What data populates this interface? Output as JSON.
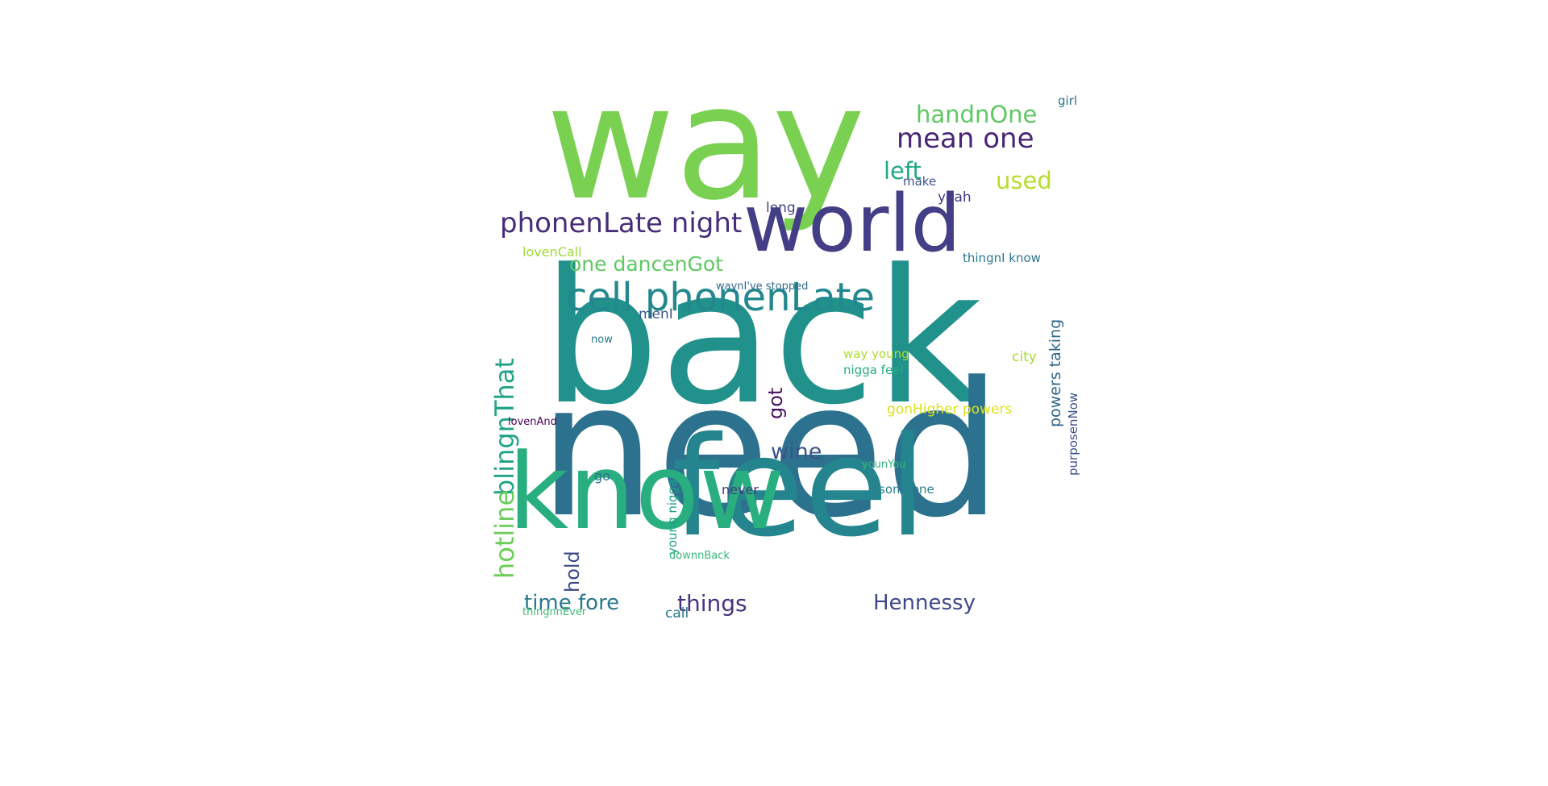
{
  "wordcloud": {
    "background": "#ffffff",
    "palette": "viridis",
    "words": [
      {
        "text": "back",
        "color": "#21918c",
        "orientation": "horizontal"
      },
      {
        "text": "need",
        "color": "#2c728e",
        "orientation": "horizontal"
      },
      {
        "text": "way",
        "color": "#7ad151",
        "orientation": "horizontal"
      },
      {
        "text": "feel",
        "color": "#25858e",
        "orientation": "horizontal"
      },
      {
        "text": "know",
        "color": "#29af7f",
        "orientation": "horizontal"
      },
      {
        "text": "world",
        "color": "#433e85",
        "orientation": "horizontal"
      },
      {
        "text": "cell phonenLate",
        "color": "#23888e",
        "orientation": "horizontal"
      },
      {
        "text": "phonenLate night",
        "color": "#472c7a",
        "orientation": "horizontal"
      },
      {
        "text": "mean one",
        "color": "#482576",
        "orientation": "horizontal"
      },
      {
        "text": "handnOne",
        "color": "#5ec962",
        "orientation": "horizontal"
      },
      {
        "text": "left",
        "color": "#22a884",
        "orientation": "horizontal"
      },
      {
        "text": "used",
        "color": "#b5de2b",
        "orientation": "horizontal"
      },
      {
        "text": "one dancenGot",
        "color": "#5ec962",
        "orientation": "horizontal"
      },
      {
        "text": "blingnThat",
        "color": "#20a386",
        "orientation": "vertical"
      },
      {
        "text": "hotline",
        "color": "#6ccd5a",
        "orientation": "vertical"
      },
      {
        "text": "got",
        "color": "#471164",
        "orientation": "vertical"
      },
      {
        "text": "wine",
        "color": "#3b528b",
        "orientation": "horizontal"
      },
      {
        "text": "hold",
        "color": "#3e4989",
        "orientation": "vertical"
      },
      {
        "text": "time fore",
        "color": "#2a788e",
        "orientation": "horizontal"
      },
      {
        "text": "things",
        "color": "#46327e",
        "orientation": "horizontal"
      },
      {
        "text": "Hennessy",
        "color": "#3e4989",
        "orientation": "horizontal"
      },
      {
        "text": "powers taking",
        "color": "#31688e",
        "orientation": "vertical"
      },
      {
        "text": "purposenNow",
        "color": "#3b528b",
        "orientation": "vertical"
      },
      {
        "text": "young nigga",
        "color": "#1fa188",
        "orientation": "vertical"
      },
      {
        "text": "girl",
        "color": "#2c728e",
        "orientation": "horizontal"
      },
      {
        "text": "make",
        "color": "#3b528b",
        "orientation": "horizontal"
      },
      {
        "text": "yeah",
        "color": "#443983",
        "orientation": "horizontal"
      },
      {
        "text": "long",
        "color": "#414487",
        "orientation": "horizontal"
      },
      {
        "text": "lovenCall",
        "color": "#9fda3a",
        "orientation": "horizontal"
      },
      {
        "text": "thingnI know",
        "color": "#2a788e",
        "orientation": "horizontal"
      },
      {
        "text": "waynI've stopped",
        "color": "#31688e",
        "orientation": "horizontal"
      },
      {
        "text": "menI",
        "color": "#39568c",
        "orientation": "horizontal"
      },
      {
        "text": "now",
        "color": "#2a788e",
        "orientation": "horizontal"
      },
      {
        "text": "way young",
        "color": "#addc30",
        "orientation": "horizontal"
      },
      {
        "text": "nigga feel",
        "color": "#27ad81",
        "orientation": "horizontal"
      },
      {
        "text": "city",
        "color": "#a5db36",
        "orientation": "horizontal"
      },
      {
        "text": "gonHigher powers",
        "color": "#dde318",
        "orientation": "horizontal"
      },
      {
        "text": "lovenAnd",
        "color": "#440154",
        "orientation": "horizontal"
      },
      {
        "text": "younYou",
        "color": "#35b779",
        "orientation": "horizontal"
      },
      {
        "text": "go",
        "color": "#2c728e",
        "orientation": "horizontal"
      },
      {
        "text": "never",
        "color": "#453781",
        "orientation": "horizontal"
      },
      {
        "text": "someone",
        "color": "#287d8e",
        "orientation": "horizontal"
      },
      {
        "text": "downnBack",
        "color": "#35b779",
        "orientation": "horizontal"
      },
      {
        "text": "thingnnEver",
        "color": "#3dbc74",
        "orientation": "horizontal"
      },
      {
        "text": "call",
        "color": "#2c728e",
        "orientation": "horizontal"
      }
    ]
  }
}
